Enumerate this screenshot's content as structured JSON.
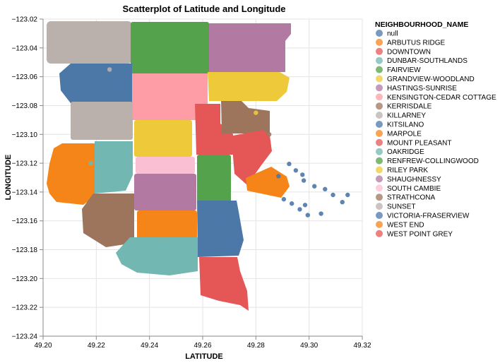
{
  "chart_data": {
    "type": "scatter",
    "title": "Scatterplot of Latitude and Longitude",
    "xlabel": "LATITUDE",
    "ylabel": "LONGITUDE",
    "xlim": [
      49.2,
      49.32
    ],
    "ylim": [
      -123.24,
      -123.02
    ],
    "x_ticks": [
      "49.20",
      "49.22",
      "49.24",
      "49.26",
      "49.28",
      "49.30",
      "49.32"
    ],
    "y_ticks": [
      "−123.02",
      "−123.04",
      "−123.06",
      "−123.08",
      "−123.10",
      "−123.12",
      "−123.14",
      "−123.16",
      "−123.18",
      "−123.20",
      "−123.22",
      "−123.24"
    ],
    "grid": true,
    "legend_position": "right",
    "legend_title": "NEIGHBOURHOOD_NAME",
    "series": [
      {
        "name": "null",
        "color": "#4c78a8",
        "points": [
          [
            49.2925,
            -123.1205
          ],
          [
            49.295,
            -123.125
          ],
          [
            49.298,
            -123.132
          ],
          [
            49.302,
            -123.136
          ],
          [
            49.306,
            -123.138
          ],
          [
            49.309,
            -123.142
          ],
          [
            49.2905,
            -123.145
          ],
          [
            49.2935,
            -123.148
          ],
          [
            49.2965,
            -123.152
          ],
          [
            49.2995,
            -123.156
          ],
          [
            49.3045,
            -123.155
          ],
          [
            49.2985,
            -123.149
          ],
          [
            49.3145,
            -123.142
          ],
          [
            49.3125,
            -123.147
          ],
          [
            49.2885,
            -123.129
          ],
          [
            49.2975,
            -123.128
          ]
        ]
      },
      {
        "name": "ARBUTUS RIDGE",
        "color": "#f58518",
        "points": [
          [
            49.24,
            -123.163
          ],
          [
            49.246,
            -123.17
          ]
        ]
      },
      {
        "name": "DOWNTOWN",
        "color": "#e45756",
        "points": [
          [
            49.283,
            -123.115
          ],
          [
            49.279,
            -123.122
          ]
        ]
      },
      {
        "name": "DUNBAR-SOUTHLANDS",
        "color": "#72b7b2",
        "points": [
          [
            49.218,
            -123.12
          ],
          [
            49.224,
            -123.13
          ]
        ]
      },
      {
        "name": "FAIRVIEW",
        "color": "#54a24b",
        "points": [
          [
            49.264,
            -123.125
          ],
          [
            49.268,
            -123.135
          ]
        ]
      },
      {
        "name": "GRANDVIEW-WOODLAND",
        "color": "#eeca3b",
        "points": [
          [
            49.27,
            -123.07
          ],
          [
            49.28,
            -123.085
          ]
        ]
      },
      {
        "name": "HASTINGS-SUNRISE",
        "color": "#b279a2",
        "points": [
          [
            49.275,
            -123.04
          ],
          [
            49.283,
            -123.055
          ]
        ]
      },
      {
        "name": "KENSINGTON-CEDAR COTTAGE",
        "color": "#ff9da6",
        "points": [
          [
            49.245,
            -123.075
          ],
          [
            49.25,
            -123.085
          ]
        ]
      },
      {
        "name": "KERRISDALE",
        "color": "#9d755d",
        "points": [
          [
            49.223,
            -123.155
          ],
          [
            49.228,
            -123.165
          ]
        ]
      },
      {
        "name": "KILLARNEY",
        "color": "#bab0ac",
        "points": [
          [
            49.218,
            -123.045
          ],
          [
            49.225,
            -123.055
          ]
        ]
      },
      {
        "name": "KITSILANO",
        "color": "#4c78a8",
        "points": [
          [
            49.265,
            -123.16
          ],
          [
            49.27,
            -123.175
          ]
        ]
      },
      {
        "name": "MARPOLE",
        "color": "#f58518",
        "points": [
          [
            49.21,
            -123.13
          ],
          [
            49.215,
            -123.14
          ]
        ]
      },
      {
        "name": "MOUNT PLEASANT",
        "color": "#e45756",
        "points": [
          [
            49.265,
            -123.095
          ],
          [
            49.268,
            -123.105
          ]
        ]
      },
      {
        "name": "OAKRIDGE",
        "color": "#72b7b2",
        "points": [
          [
            49.24,
            -123.18
          ],
          [
            49.245,
            -123.19
          ]
        ]
      },
      {
        "name": "RENFREW-COLLINGWOOD",
        "color": "#54a24b",
        "points": [
          [
            49.24,
            -123.035
          ],
          [
            49.248,
            -123.05
          ]
        ]
      },
      {
        "name": "RILEY PARK",
        "color": "#eeca3b",
        "points": [
          [
            49.242,
            -123.1
          ],
          [
            49.25,
            -123.108
          ]
        ]
      },
      {
        "name": "SHAUGHNESSY",
        "color": "#b279a2",
        "points": [
          [
            49.245,
            -123.14
          ],
          [
            49.25,
            -123.145
          ]
        ]
      },
      {
        "name": "SOUTH CAMBIE",
        "color": "#fabfd2",
        "points": [
          [
            49.242,
            -123.12
          ],
          [
            49.25,
            -123.123
          ]
        ]
      },
      {
        "name": "STRATHCONA",
        "color": "#9d755d",
        "points": [
          [
            49.28,
            -123.095
          ],
          [
            49.285,
            -123.1
          ]
        ]
      },
      {
        "name": "SUNSET",
        "color": "#bab0ac",
        "points": [
          [
            49.222,
            -123.085
          ],
          [
            49.228,
            -123.09
          ]
        ]
      },
      {
        "name": "VICTORIA-FRASERVIEW",
        "color": "#4c78a8",
        "points": [
          [
            49.222,
            -123.062
          ],
          [
            49.228,
            -123.068
          ]
        ]
      },
      {
        "name": "WEST END",
        "color": "#f58518",
        "points": [
          [
            49.285,
            -123.135
          ],
          [
            49.29,
            -123.14
          ]
        ]
      },
      {
        "name": "WEST POINT GREY",
        "color": "#e45756",
        "points": [
          [
            49.265,
            -123.2
          ],
          [
            49.27,
            -123.21
          ]
        ]
      }
    ]
  }
}
